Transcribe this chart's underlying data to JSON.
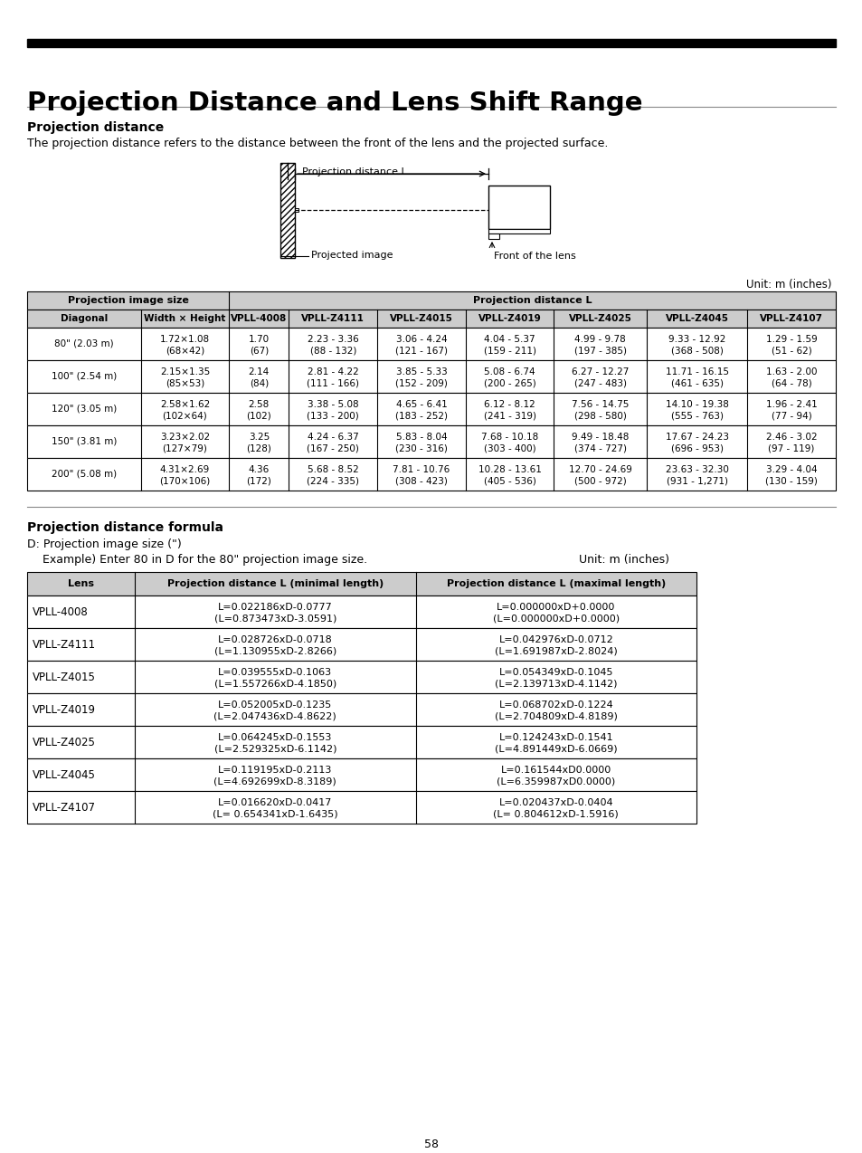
{
  "page_title": "Projection Distance and Lens Shift Range",
  "section1_title": "Projection distance",
  "section1_body": "The projection distance refers to the distance between the front of the lens and the projected surface.",
  "diagram_label_L": "Projection distance L",
  "diagram_label_projected": "Projected image",
  "diagram_label_front": "Front of the lens",
  "unit_label1": "Unit: m (inches)",
  "table1_header_row2": [
    "Diagonal",
    "Width × Height",
    "VPLL-4008",
    "VPLL-Z4111",
    "VPLL-Z4015",
    "VPLL-Z4019",
    "VPLL-Z4025",
    "VPLL-Z4045",
    "VPLL-Z4107"
  ],
  "table1_data": [
    [
      "80\" (2.03 m)",
      "1.72×1.08\n(68×42)",
      "1.70\n(67)",
      "2.23 - 3.36\n(88 - 132)",
      "3.06 - 4.24\n(121 - 167)",
      "4.04 - 5.37\n(159 - 211)",
      "4.99 - 9.78\n(197 - 385)",
      "9.33 - 12.92\n(368 - 508)",
      "1.29 - 1.59\n(51 - 62)"
    ],
    [
      "100\" (2.54 m)",
      "2.15×1.35\n(85×53)",
      "2.14\n(84)",
      "2.81 - 4.22\n(111 - 166)",
      "3.85 - 5.33\n(152 - 209)",
      "5.08 - 6.74\n(200 - 265)",
      "6.27 - 12.27\n(247 - 483)",
      "11.71 - 16.15\n(461 - 635)",
      "1.63 - 2.00\n(64 - 78)"
    ],
    [
      "120\" (3.05 m)",
      "2.58×1.62\n(102×64)",
      "2.58\n(102)",
      "3.38 - 5.08\n(133 - 200)",
      "4.65 - 6.41\n(183 - 252)",
      "6.12 - 8.12\n(241 - 319)",
      "7.56 - 14.75\n(298 - 580)",
      "14.10 - 19.38\n(555 - 763)",
      "1.96 - 2.41\n(77 - 94)"
    ],
    [
      "150\" (3.81 m)",
      "3.23×2.02\n(127×79)",
      "3.25\n(128)",
      "4.24 - 6.37\n(167 - 250)",
      "5.83 - 8.04\n(230 - 316)",
      "7.68 - 10.18\n(303 - 400)",
      "9.49 - 18.48\n(374 - 727)",
      "17.67 - 24.23\n(696 - 953)",
      "2.46 - 3.02\n(97 - 119)"
    ],
    [
      "200\" (5.08 m)",
      "4.31×2.69\n(170×106)",
      "4.36\n(172)",
      "5.68 - 8.52\n(224 - 335)",
      "7.81 - 10.76\n(308 - 423)",
      "10.28 - 13.61\n(405 - 536)",
      "12.70 - 24.69\n(500 - 972)",
      "23.63 - 32.30\n(931 - 1,271)",
      "3.29 - 4.04\n(130 - 159)"
    ]
  ],
  "section2_title": "Projection distance formula",
  "section2_body1": "D: Projection image size (\")",
  "section2_body2": "    Example) Enter 80 in D for the 80\" projection image size.",
  "unit_label2": "Unit: m (inches)",
  "table2_header": [
    "Lens",
    "Projection distance L (minimal length)",
    "Projection distance L (maximal length)"
  ],
  "table2_data": [
    [
      "VPLL-4008",
      "L=0.022186xD-0.0777\n(L=0.873473xD-3.0591)",
      "L=0.000000xD+0.0000\n(L=0.000000xD+0.0000)"
    ],
    [
      "VPLL-Z4111",
      "L=0.028726xD-0.0718\n(L=1.130955xD-2.8266)",
      "L=0.042976xD-0.0712\n(L=1.691987xD-2.8024)"
    ],
    [
      "VPLL-Z4015",
      "L=0.039555xD-0.1063\n(L=1.557266xD-4.1850)",
      "L=0.054349xD-0.1045\n(L=2.139713xD-4.1142)"
    ],
    [
      "VPLL-Z4019",
      "L=0.052005xD-0.1235\n(L=2.047436xD-4.8622)",
      "L=0.068702xD-0.1224\n(L=2.704809xD-4.8189)"
    ],
    [
      "VPLL-Z4025",
      "L=0.064245xD-0.1553\n(L=2.529325xD-6.1142)",
      "L=0.124243xD-0.1541\n(L=4.891449xD-6.0669)"
    ],
    [
      "VPLL-Z4045",
      "L=0.119195xD-0.2113\n(L=4.692699xD-8.3189)",
      "L=0.161544xD0.0000\n(L=6.359987xD0.0000)"
    ],
    [
      "VPLL-Z4107",
      "L=0.016620xD-0.0417\n(L= 0.654341xD-1.6435)",
      "L=0.020437xD-0.0404\n(L= 0.804612xD-1.5916)"
    ]
  ],
  "page_number": "58",
  "bg_color": "#ffffff",
  "header_bg": "#cccccc",
  "black_bar_color": "#000000"
}
